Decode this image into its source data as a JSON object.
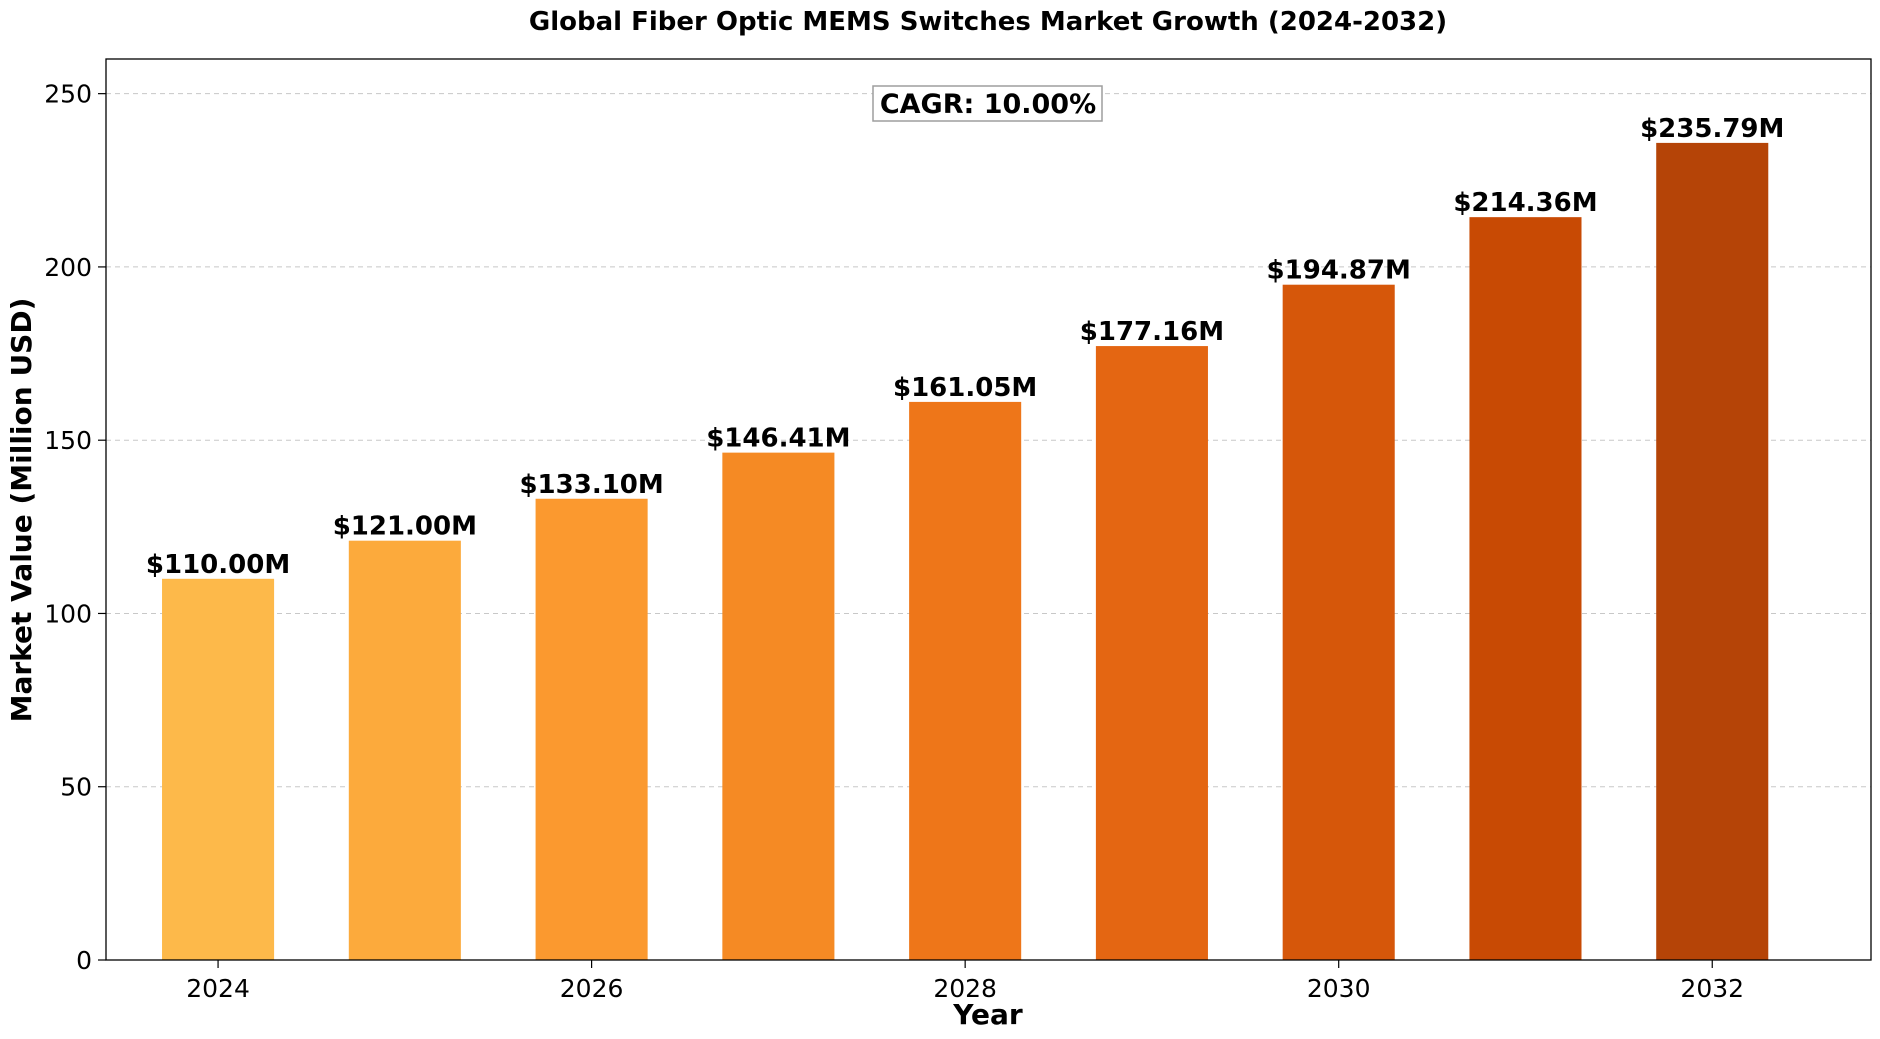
{
  "chart_data": {
    "type": "bar",
    "title": "Global Fiber Optic MEMS Switches Market Growth (2024-2032)",
    "xlabel": "Year",
    "ylabel": "Market Value (Million USD)",
    "annotation": "CAGR: 10.00%",
    "categories": [
      2024,
      2025,
      2026,
      2027,
      2028,
      2029,
      2030,
      2031,
      2032
    ],
    "values": [
      110.0,
      121.0,
      133.1,
      146.41,
      161.05,
      177.16,
      194.87,
      214.36,
      235.79
    ],
    "value_labels": [
      "$110.00M",
      "$121.00M",
      "$133.10M",
      "$146.41M",
      "$161.05M",
      "$177.16M",
      "$194.87M",
      "$214.36M",
      "$235.79M"
    ],
    "bar_colors": [
      "#FDB94A",
      "#FCAA3C",
      "#FB992F",
      "#F58A24",
      "#EE7619",
      "#E46612",
      "#D6570A",
      "#C84A04",
      "#B54407"
    ],
    "x_ticks": [
      2024,
      2026,
      2028,
      2030,
      2032
    ],
    "x_tick_labels": [
      "2024",
      "2026",
      "2028",
      "2030",
      "2032"
    ],
    "y_ticks": [
      0,
      50,
      100,
      150,
      200,
      250
    ],
    "y_tick_labels": [
      "0",
      "50",
      "100",
      "150",
      "200",
      "250"
    ],
    "ylim": [
      0,
      260
    ],
    "grid": "y-dashed",
    "legend": "none"
  }
}
